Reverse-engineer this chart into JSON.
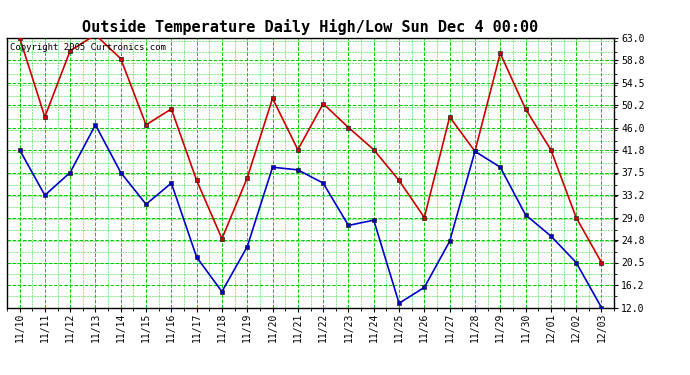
{
  "title": "Outside Temperature Daily High/Low Sun Dec 4 00:00",
  "copyright": "Copyright 2005 Curtronics.com",
  "background_color": "#ffffff",
  "plot_bg_color": "#ffffff",
  "grid_color": "#00cc00",
  "x_labels": [
    "11/10",
    "11/11",
    "11/12",
    "11/13",
    "11/14",
    "11/15",
    "11/16",
    "11/17",
    "11/18",
    "11/19",
    "11/20",
    "11/21",
    "11/22",
    "11/23",
    "11/24",
    "11/25",
    "11/26",
    "11/27",
    "11/28",
    "11/29",
    "11/30",
    "12/01",
    "12/02",
    "12/03"
  ],
  "high_temps": [
    63.0,
    48.0,
    60.5,
    63.5,
    59.0,
    46.5,
    49.5,
    36.0,
    25.0,
    36.5,
    51.5,
    41.8,
    50.5,
    46.0,
    41.8,
    36.0,
    29.0,
    48.0,
    41.5,
    60.0,
    49.5,
    41.8,
    29.0,
    20.5
  ],
  "low_temps": [
    41.8,
    33.2,
    37.5,
    46.5,
    37.5,
    31.5,
    35.5,
    21.5,
    15.0,
    23.5,
    38.5,
    38.0,
    35.5,
    27.5,
    28.5,
    12.8,
    15.8,
    24.5,
    41.5,
    38.5,
    29.5,
    25.5,
    20.5,
    12.0
  ],
  "high_color": "#cc0000",
  "low_color": "#0000cc",
  "marker": "s",
  "marker_size": 2.5,
  "line_width": 1.2,
  "ylim": [
    12.0,
    63.0
  ],
  "yticks": [
    12.0,
    16.2,
    20.5,
    24.8,
    29.0,
    33.2,
    37.5,
    41.8,
    46.0,
    50.2,
    54.5,
    58.8,
    63.0
  ],
  "title_fontsize": 11,
  "tick_fontsize": 7,
  "copyright_fontsize": 6.5
}
